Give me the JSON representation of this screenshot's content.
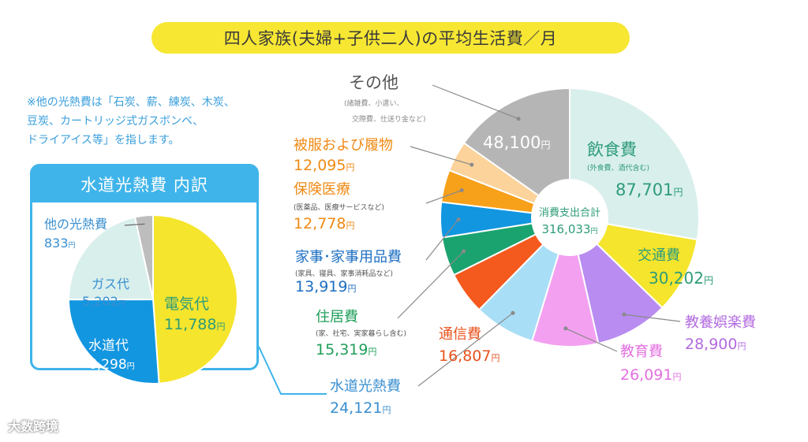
{
  "title": "四人家族(夫婦+子供二人)の平均生活費／月",
  "note": {
    "lines": [
      "※他の光熱費は「石炭、薪、練炭、木炭、",
      "豆炭、カートリッジ式ガスボンベ、",
      "ドライアイス等」を指します。"
    ]
  },
  "watermark": "大数跨境",
  "chart_data": [
    {
      "type": "pie",
      "center_label": {
        "title": "消費支出合計",
        "value": "316,033",
        "unit": "円"
      },
      "slices": [
        {
          "label": "飲食費",
          "sublabel": "(外食費、酒代含む)",
          "value": 87701,
          "display": "87,701",
          "unit": "円",
          "color": "#d9efec",
          "label_color": "#2e9c7a"
        },
        {
          "label": "交通費",
          "sublabel": "",
          "value": 30202,
          "display": "30,202",
          "unit": "円",
          "color": "#f5e52c",
          "label_color": "#2e9c7a"
        },
        {
          "label": "教養娯楽費",
          "sublabel": "",
          "value": 28900,
          "display": "28,900",
          "unit": "円",
          "color": "#b88cf0",
          "label_color": "#b36be0"
        },
        {
          "label": "教育費",
          "sublabel": "",
          "value": 26091,
          "display": "26,091",
          "unit": "円",
          "color": "#f3a0f0",
          "label_color": "#e36fe0"
        },
        {
          "label": "水道光熱費",
          "sublabel": "",
          "value": 24121,
          "display": "24,121",
          "unit": "円",
          "color": "#a9def7",
          "label_color": "#3a8fd0"
        },
        {
          "label": "通信費",
          "sublabel": "",
          "value": 16807,
          "display": "16,807",
          "unit": "円",
          "color": "#f4591e",
          "label_color": "#e8531d"
        },
        {
          "label": "住居費",
          "sublabel": "(家、社宅、実家暮らし含む)",
          "value": 15319,
          "display": "15,319",
          "unit": "円",
          "color": "#1aa36f",
          "label_color": "#1f9e5a"
        },
        {
          "label": "家事･家事用品費",
          "sublabel": "(家具、寝具、家事消耗品など)",
          "value": 13919,
          "display": "13,919",
          "unit": "円",
          "color": "#1296e0",
          "label_color": "#1d6fc2"
        },
        {
          "label": "保険医療",
          "sublabel": "(医薬品、医療サービスなど)",
          "value": 12778,
          "display": "12,778",
          "unit": "円",
          "color": "#f7a019",
          "label_color": "#ef8a14"
        },
        {
          "label": "被服および履物",
          "sublabel": "",
          "value": 12095,
          "display": "12,095",
          "unit": "円",
          "color": "#fbd39b",
          "label_color": "#ef8a14"
        },
        {
          "label": "その他",
          "sublabel": "(諸雑費、小遣い、交際費、仕送り金など)",
          "value": 48100,
          "display": "48,100",
          "unit": "円",
          "color": "#b5b5b5",
          "label_color": "#555555"
        }
      ]
    },
    {
      "type": "pie",
      "title": "水道光熱費 内訳",
      "slices": [
        {
          "label": "電気代",
          "value": 11788,
          "display": "11,788",
          "unit": "円",
          "color": "#f5e52c",
          "label_color": "#2e9c7a"
        },
        {
          "label": "水道代",
          "value": 6298,
          "display": "6,298",
          "unit": "円",
          "color": "#1296e0",
          "label_color": "#ffffff"
        },
        {
          "label": "ガス代",
          "value": 5202,
          "display": "5,202",
          "unit": "円",
          "color": "#d9efec",
          "label_color": "#3a8fd0"
        },
        {
          "label": "他の光熱費",
          "value": 833,
          "display": "833",
          "unit": "円",
          "color": "#bdbdbd",
          "label_color": "#3a8fd0"
        }
      ]
    }
  ]
}
